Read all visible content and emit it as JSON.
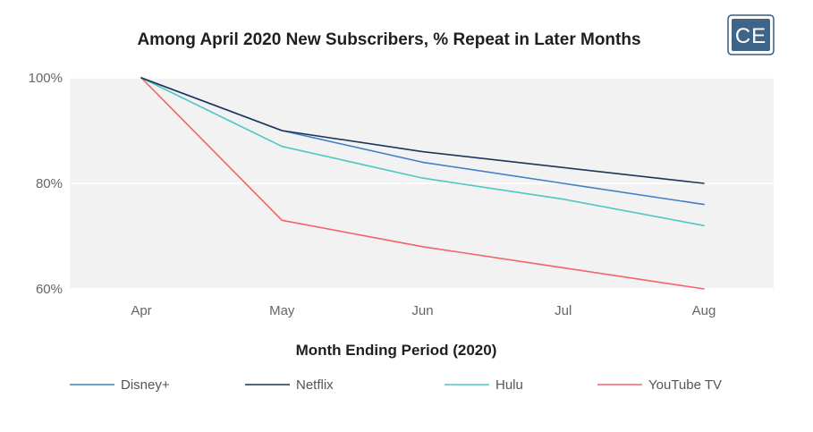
{
  "logo": {
    "text": "CE"
  },
  "chart_data": {
    "type": "line",
    "title": "Among April 2020 New Subscribers, % Repeat in Later Months",
    "xlabel": "Month Ending Period (2020)",
    "ylabel": "",
    "categories": [
      "Apr",
      "May",
      "Jun",
      "Jul",
      "Aug"
    ],
    "ylim": [
      60,
      100
    ],
    "yticks": [
      60,
      80,
      100
    ],
    "ytick_labels": [
      "60%",
      "80%",
      "100%"
    ],
    "grid": true,
    "legend_position": "bottom",
    "background_color": "#f2f2f2",
    "series": [
      {
        "name": "Disney+",
        "color": "#3f7fc8",
        "values": [
          100,
          90,
          84,
          80,
          76
        ]
      },
      {
        "name": "Netflix",
        "color": "#1d3557",
        "values": [
          100,
          90,
          86,
          83,
          80
        ]
      },
      {
        "name": "Hulu",
        "color": "#4ec7c3",
        "values": [
          100,
          87,
          81,
          77,
          72
        ]
      },
      {
        "name": "YouTube TV",
        "color": "#f06468",
        "values": [
          100,
          73,
          68,
          64,
          60
        ]
      }
    ]
  }
}
